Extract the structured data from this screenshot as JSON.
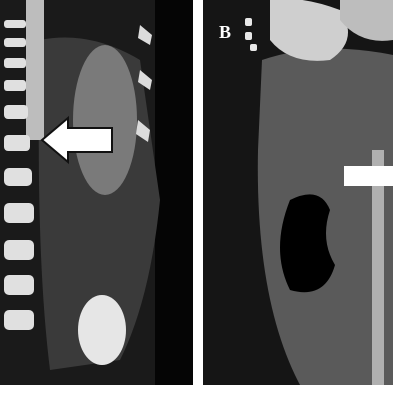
{
  "panels": {
    "right": {
      "label": "B"
    }
  }
}
